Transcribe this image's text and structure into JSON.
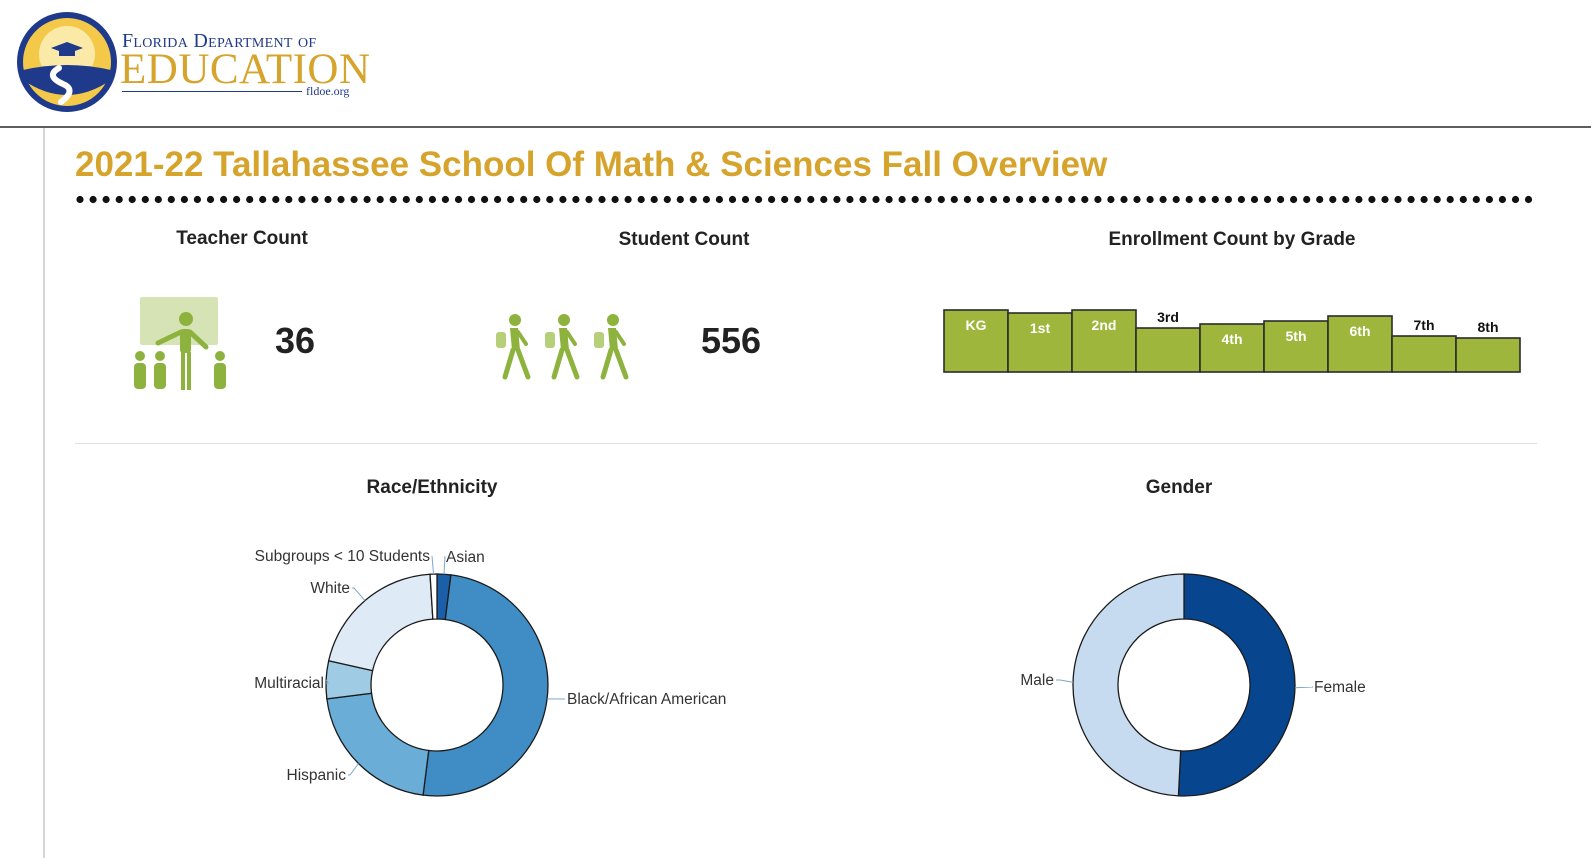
{
  "header": {
    "logo_line1": "Florida Department of",
    "logo_line2": "EDUCATION",
    "logo_url": "fldoe.org"
  },
  "page_title": "2021-22 Tallahassee School Of Math & Sciences Fall Overview",
  "teacher": {
    "title": "Teacher Count",
    "value": "36",
    "icon": "teacher-icon"
  },
  "student": {
    "title": "Student Count",
    "value": "556",
    "icon": "students-walking-icon"
  },
  "enrollment": {
    "title": "Enrollment Count by Grade"
  },
  "race": {
    "title": "Race/Ethnicity"
  },
  "gender": {
    "title": "Gender"
  },
  "colors": {
    "accent": "#d6a42c",
    "bar": "#9db63b",
    "icon": "#8db33e"
  },
  "chart_data": [
    {
      "type": "bar",
      "title": "Enrollment Count by Grade",
      "categories": [
        "KG",
        "1st",
        "2nd",
        "3rd",
        "4th",
        "5th",
        "6th",
        "7th",
        "8th"
      ],
      "values": [
        62,
        59,
        62,
        44,
        48,
        51,
        56,
        36,
        34
      ],
      "color": "#9db63b"
    },
    {
      "type": "pie",
      "title": "Race/Ethnicity",
      "labels": [
        "Asian",
        "Black/African American",
        "Hispanic",
        "Multiracial",
        "White",
        "Subgroups < 10 Students"
      ],
      "values": [
        2.0,
        50.0,
        21.0,
        5.5,
        20.5,
        1.0
      ],
      "colors": [
        "#1a5fa8",
        "#3f8dc4",
        "#6aaed8",
        "#9fcbe4",
        "#deebf7",
        "#ffffff"
      ]
    },
    {
      "type": "pie",
      "title": "Gender",
      "labels": [
        "Female",
        "Male"
      ],
      "values": [
        50.8,
        49.2
      ],
      "colors": [
        "#08458f",
        "#c6dbef"
      ]
    }
  ]
}
